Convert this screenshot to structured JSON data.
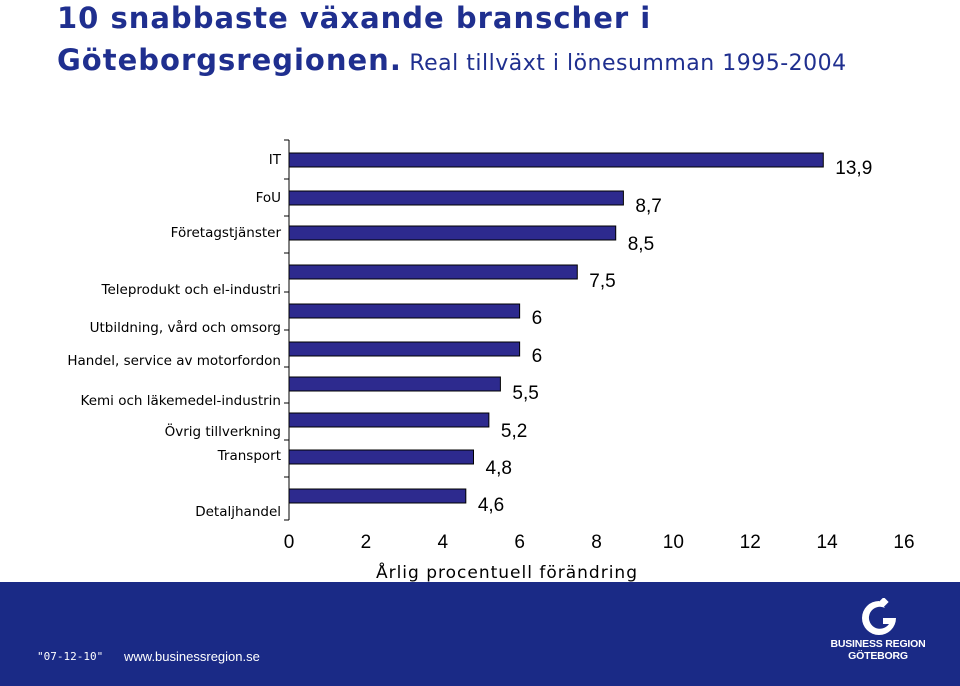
{
  "title": {
    "main": "10 snabbaste växande branscher i Göteborgsregionen.",
    "sub": " Real tillväxt i lönesumman 1995-2004"
  },
  "chart_data": {
    "type": "bar",
    "orientation": "horizontal",
    "categories": [
      "IT",
      "FoU",
      "Företagstjänster",
      "Teleprodukt och el-industri",
      "Utbildning, vård och omsorg",
      "Handel, service av motorfordon",
      "Kemi och läkemedel-industrin",
      "Övrig tillverkning",
      "Transport",
      "Detaljhandel"
    ],
    "values": [
      13.9,
      8.7,
      8.5,
      7.5,
      6,
      6,
      5.5,
      5.2,
      4.8,
      4.6
    ],
    "value_labels": [
      "13,9",
      "8,7",
      "8,5",
      "7,5",
      "6",
      "6",
      "5,5",
      "5,2",
      "4,8",
      "4,6"
    ],
    "xlim": [
      0,
      16
    ],
    "xticks": [
      "0",
      "2",
      "4",
      "6",
      "8",
      "10",
      "12",
      "14",
      "16"
    ],
    "xlabel": "Årlig procentuell förändring",
    "grid": false,
    "bar_color": "#2d2a8e"
  },
  "footer": {
    "date": "\"07-12-10\"",
    "url": "www.businessregion.se",
    "logo_line1": "BUSINESS REGION",
    "logo_line2": "GÖTEBORG",
    "background": "#1a2a86"
  }
}
